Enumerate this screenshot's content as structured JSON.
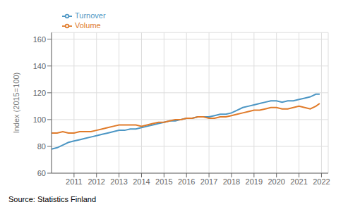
{
  "chart_data": {
    "type": "line",
    "x": [
      2010.0,
      2010.25,
      2010.5,
      2010.75,
      2011.0,
      2011.25,
      2011.5,
      2011.75,
      2012.0,
      2012.25,
      2012.5,
      2012.75,
      2013.0,
      2013.25,
      2013.5,
      2013.75,
      2014.0,
      2014.25,
      2014.5,
      2014.75,
      2015.0,
      2015.25,
      2015.5,
      2015.75,
      2016.0,
      2016.25,
      2016.5,
      2016.75,
      2017.0,
      2017.25,
      2017.5,
      2017.75,
      2018.0,
      2018.25,
      2018.5,
      2018.75,
      2019.0,
      2019.25,
      2019.5,
      2019.75,
      2020.0,
      2020.25,
      2020.5,
      2020.75,
      2021.0,
      2021.25,
      2021.5,
      2021.75,
      2021.92
    ],
    "series": [
      {
        "name": "Turnover",
        "color": "#4C96C4",
        "values": [
          78,
          79,
          81,
          83,
          84,
          85,
          86,
          87,
          88,
          89,
          90,
          91,
          92,
          92,
          93,
          93,
          94,
          95,
          96,
          97,
          98,
          99,
          99,
          100,
          101,
          101,
          102,
          102,
          102,
          103,
          104,
          104,
          105,
          107,
          109,
          110,
          111,
          112,
          113,
          114,
          114,
          113,
          114,
          114,
          115,
          116,
          117,
          119,
          119
        ]
      },
      {
        "name": "Volume",
        "color": "#E07B2A",
        "values": [
          90,
          90,
          91,
          90,
          90,
          91,
          91,
          91,
          92,
          93,
          94,
          95,
          96,
          96,
          96,
          96,
          95,
          96,
          97,
          98,
          98,
          99,
          100,
          100,
          101,
          101,
          102,
          102,
          101,
          101,
          102,
          102,
          103,
          104,
          105,
          106,
          107,
          107,
          108,
          109,
          109,
          108,
          108,
          109,
          110,
          109,
          108,
          110,
          112
        ]
      }
    ],
    "y_label": "Index (2015=100)",
    "xlim": [
      2010.0,
      2022.3
    ],
    "xticks": [
      2011,
      2012,
      2013,
      2014,
      2015,
      2016,
      2017,
      2018,
      2019,
      2020,
      2021,
      2022
    ],
    "ylim": [
      60,
      165
    ],
    "yticks": [
      60,
      80,
      100,
      120,
      140,
      160
    ],
    "grid": true,
    "legend": "upper left",
    "annotation": "Source: Statistics Finland"
  }
}
